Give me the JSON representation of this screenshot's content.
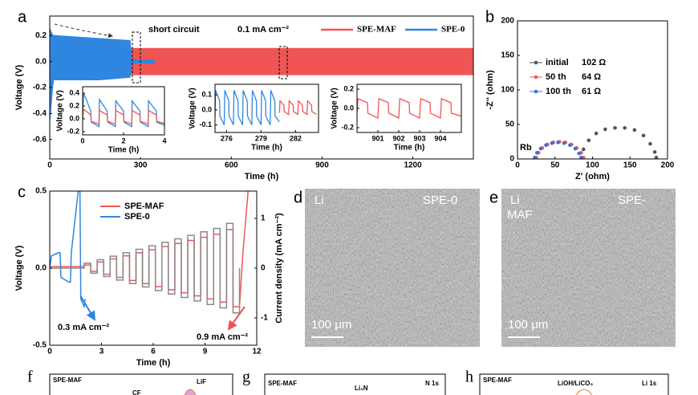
{
  "chart_data": [
    {
      "type": "band",
      "panel": "a",
      "xlabel": "Time (h)",
      "ylabel": "Voltage (V)",
      "xlim": [
        0,
        1400
      ],
      "ylim": [
        -0.75,
        0.35
      ],
      "xticks": [
        0,
        300,
        600,
        900,
        1200
      ],
      "yticks": [
        -0.6,
        -0.4,
        -0.2,
        {
          "value": 0,
          "label": "0.0"
        },
        0.2
      ],
      "legend": "top-right",
      "annotations": [
        "short circuit",
        "0.1 mA cm⁻²"
      ],
      "series": [
        {
          "name": "SPE-MAF",
          "color": "#f05454",
          "x": [
            0,
            1400
          ],
          "upper": [
            0.1,
            0.1
          ],
          "lower": [
            -0.1,
            -0.1
          ]
        },
        {
          "name": "SPE-0",
          "color": "#2f86e0",
          "x": [
            0,
            10,
            265,
            270,
            345
          ],
          "upper": [
            0.25,
            0.2,
            0.16,
            0.01,
            0.01
          ],
          "lower": [
            -0.45,
            -0.17,
            -0.12,
            -0.01,
            -0.01
          ]
        }
      ]
    },
    {
      "type": "line",
      "xlabel": "Time (h)",
      "ylabel": "Voltage (V)",
      "xlim": [
        0,
        4
      ],
      "ylim": [
        -0.25,
        0.5
      ],
      "xticks": [
        0,
        2,
        4
      ],
      "yticks": [
        -0.2,
        {
          "value": 0,
          "label": "0.0"
        },
        0.2,
        0.4
      ],
      "series": [
        {
          "color": "#2f86e0",
          "x": [
            0,
            0.05,
            0.4,
            0.42,
            0.8,
            0.82,
            1.2,
            1.22,
            1.6,
            1.62,
            2.0,
            2.02,
            2.4,
            2.42,
            2.8,
            2.82,
            3.2,
            3.22,
            3.6,
            3.62,
            4.0
          ],
          "values": [
            0.1,
            0.4,
            0.12,
            -0.05,
            -0.12,
            0.3,
            0.12,
            -0.05,
            -0.12,
            0.28,
            0.12,
            -0.05,
            -0.12,
            0.28,
            0.12,
            -0.05,
            -0.12,
            0.28,
            0.12,
            -0.05,
            -0.1
          ]
        },
        {
          "color": "#f05454",
          "x": [
            0,
            0.05,
            0.4,
            0.42,
            0.8,
            0.82,
            1.2,
            1.22,
            1.6,
            1.62,
            2.0,
            2.02,
            2.4,
            2.42,
            2.8,
            2.82,
            3.2,
            3.22,
            3.6,
            3.62,
            4.0
          ],
          "values": [
            0.0,
            0.15,
            0.06,
            -0.04,
            -0.08,
            0.13,
            0.06,
            -0.04,
            -0.08,
            0.13,
            0.06,
            -0.04,
            -0.08,
            0.13,
            0.06,
            -0.04,
            -0.08,
            0.13,
            0.06,
            -0.04,
            -0.07
          ]
        }
      ]
    },
    {
      "type": "line",
      "xlabel": "Time (h)",
      "ylabel": "Voltage (V)",
      "xlim": [
        275,
        284
      ],
      "ylim": [
        -0.15,
        0.17
      ],
      "xticks": [
        276,
        279,
        282
      ],
      "yticks": [
        -0.1,
        {
          "value": 0,
          "label": "0.0"
        },
        0.1
      ],
      "series": [
        {
          "color": "#2f86e0",
          "x": [
            275,
            275.05,
            275.4,
            275.42,
            275.8,
            275.85,
            276.2,
            276.22,
            276.6,
            276.65,
            277.0,
            277.02,
            277.4,
            277.45,
            277.8,
            277.82,
            278.2,
            278.25,
            278.6,
            278.62,
            279.0,
            279.05,
            279.4,
            279.42,
            279.8,
            279.85,
            280.2,
            280.22,
            280.6
          ],
          "values": [
            -0.05,
            0.13,
            0.06,
            -0.04,
            -0.1,
            0.13,
            0.06,
            -0.04,
            -0.1,
            0.13,
            0.06,
            -0.04,
            -0.1,
            0.13,
            0.06,
            -0.04,
            -0.1,
            0.13,
            0.06,
            -0.04,
            -0.1,
            0.13,
            0.06,
            -0.04,
            -0.1,
            0.13,
            0.06,
            -0.04,
            -0.08
          ]
        },
        {
          "color": "#f05454",
          "x": [
            280.6,
            280.65,
            281.0,
            281.02,
            281.4,
            281.45,
            281.8,
            281.82,
            282.2,
            282.25,
            282.6,
            282.62,
            283.0,
            283.05,
            283.4,
            283.42,
            283.8
          ],
          "values": [
            -0.02,
            0.06,
            0.03,
            -0.01,
            -0.03,
            0.06,
            0.03,
            -0.01,
            -0.03,
            0.06,
            0.03,
            -0.01,
            -0.03,
            0.06,
            0.03,
            -0.01,
            -0.03
          ]
        }
      ]
    },
    {
      "type": "line",
      "xlabel": "Time (h)",
      "ylabel": "Voltage (V)",
      "xlim": [
        900,
        905
      ],
      "ylim": [
        -0.25,
        0.25
      ],
      "xticks": [
        901,
        902,
        903,
        904
      ],
      "yticks": [
        -0.2,
        {
          "value": 0,
          "label": "0.0"
        },
        0.2
      ],
      "series": [
        {
          "color": "#f05454",
          "x": [
            900,
            900.05,
            900.5,
            900.52,
            901,
            901.05,
            901.5,
            901.52,
            902,
            902.05,
            902.5,
            902.52,
            903,
            903.05,
            903.5,
            903.52,
            904,
            904.05,
            904.5,
            904.52,
            905
          ],
          "values": [
            -0.05,
            0.1,
            0.06,
            -0.05,
            -0.1,
            0.1,
            0.06,
            -0.05,
            -0.1,
            0.1,
            0.06,
            -0.05,
            -0.1,
            0.1,
            0.06,
            -0.05,
            -0.1,
            0.1,
            0.06,
            -0.05,
            -0.08
          ]
        }
      ]
    },
    {
      "type": "scatter",
      "panel": "b",
      "xlabel": "Z' (ohm)",
      "ylabel": "-Z'' (ohm)",
      "xlim": [
        0,
        200
      ],
      "ylim": [
        0,
        200
      ],
      "xticks": [
        0,
        50,
        100,
        150,
        200
      ],
      "yticks": [
        0,
        50,
        100,
        150,
        200
      ],
      "legend": "middle-left",
      "annotations": [
        "Rb"
      ],
      "series": [
        {
          "name": "initial",
          "annotation": "102 Ω",
          "color": "#555555",
          "x": [
            85,
            88,
            95,
            105,
            117,
            130,
            143,
            156,
            168,
            177,
            183,
            185
          ],
          "values": [
            2,
            14,
            27,
            37,
            43,
            45,
            45,
            42,
            34,
            22,
            10,
            2
          ]
        },
        {
          "name": "50 th",
          "annotation": "64 Ω",
          "color": "#ee5a5a",
          "x": [
            25,
            28,
            33,
            40,
            48,
            56,
            64,
            72,
            79,
            85,
            88
          ],
          "values": [
            2,
            9,
            16,
            21,
            24,
            25,
            24,
            21,
            16,
            9,
            2
          ]
        },
        {
          "name": "100 th",
          "annotation": "61 Ω",
          "color": "#3b6fd4",
          "x": [
            23,
            26,
            31,
            38,
            46,
            54,
            62,
            70,
            77,
            82,
            85
          ],
          "values": [
            2,
            9,
            15,
            20,
            23,
            24,
            23,
            20,
            15,
            8,
            2
          ]
        }
      ]
    },
    {
      "type": "line",
      "panel": "c",
      "xlabel": "Time (h)",
      "ylabel": "Voltage (V)",
      "y2label": "Current density (mA cm⁻²)",
      "xlim": [
        0,
        12
      ],
      "ylim": [
        -0.5,
        0.5
      ],
      "xticks": [
        0,
        3,
        6,
        9,
        12
      ],
      "yticks": [
        -0.5,
        {
          "value": 0,
          "label": "0.0"
        },
        0.5
      ],
      "y2lim": [
        -1.55,
        1.55
      ],
      "y2ticks": [
        -1,
        0,
        1
      ],
      "legend": "top-left",
      "annotations": [
        "0.3 mA cm⁻²",
        "0.9 mA cm⁻²"
      ],
      "series": [
        {
          "name": "SPE-MAF",
          "color": "#f05454",
          "x": [
            0,
            2,
            2,
            2.375,
            2.375,
            2.75,
            2.75,
            3.125,
            3.125,
            3.5,
            3.5,
            3.875,
            3.875,
            4.25,
            4.25,
            4.625,
            4.625,
            5,
            5,
            5.375,
            5.375,
            5.75,
            5.75,
            6.125,
            6.125,
            6.5,
            6.5,
            6.875,
            6.875,
            7.25,
            7.25,
            7.625,
            7.625,
            8,
            8,
            8.375,
            8.375,
            8.75,
            8.75,
            9.125,
            9.125,
            9.5,
            9.5,
            9.875,
            9.875,
            10.25,
            10.25,
            10.625,
            10.625,
            11,
            11.2,
            11.5
          ],
          "values": [
            0.01,
            0.01,
            0.02,
            0.02,
            -0.02,
            -0.02,
            0.04,
            0.04,
            -0.04,
            -0.04,
            0.06,
            0.06,
            -0.06,
            -0.06,
            0.08,
            0.08,
            -0.08,
            -0.08,
            0.1,
            0.1,
            -0.1,
            -0.1,
            0.12,
            0.12,
            -0.12,
            -0.12,
            0.14,
            0.14,
            -0.14,
            -0.14,
            0.16,
            0.16,
            -0.16,
            -0.16,
            0.18,
            0.18,
            -0.18,
            -0.18,
            0.2,
            0.2,
            -0.2,
            -0.2,
            0.22,
            0.22,
            -0.22,
            -0.22,
            0.25,
            0.25,
            -0.25,
            -0.25,
            0.1,
            0.5
          ]
        },
        {
          "name": "SPE-0",
          "color": "#2f86e0",
          "x": [
            0,
            0.1,
            0.5,
            0.6,
            0.65,
            1.1,
            1.2,
            1.25,
            1.6,
            1.65,
            1.75,
            1.8,
            2.0,
            2.05
          ],
          "values": [
            0,
            0.08,
            0.1,
            0.1,
            -0.06,
            -0.09,
            -0.09,
            0.1,
            0.45,
            0.5,
            0.5,
            -0.2,
            -0.25,
            -0.2
          ]
        },
        {
          "color": "#8a8a8a",
          "axis": "y2",
          "x": [
            0,
            2,
            2,
            2.375,
            2.375,
            2.75,
            2.75,
            3.125,
            3.125,
            3.5,
            3.5,
            3.875,
            3.875,
            4.25,
            4.25,
            4.625,
            4.625,
            5,
            5,
            5.375,
            5.375,
            5.75,
            5.75,
            6.125,
            6.125,
            6.5,
            6.5,
            6.875,
            6.875,
            7.25,
            7.25,
            7.625,
            7.625,
            8,
            8,
            8.375,
            8.375,
            8.75,
            8.75,
            9.125,
            9.125,
            9.5,
            9.5,
            9.875,
            9.875,
            10.25,
            10.25,
            10.625,
            10.625,
            11,
            11
          ],
          "values": [
            0,
            0,
            0.1,
            0.1,
            -0.1,
            -0.1,
            0.17,
            0.17,
            -0.17,
            -0.17,
            0.24,
            0.24,
            -0.24,
            -0.24,
            0.31,
            0.31,
            -0.31,
            -0.31,
            0.38,
            0.38,
            -0.38,
            -0.38,
            0.45,
            0.45,
            -0.45,
            -0.45,
            0.52,
            0.52,
            -0.52,
            -0.52,
            0.59,
            0.59,
            -0.59,
            -0.59,
            0.66,
            0.66,
            -0.66,
            -0.66,
            0.73,
            0.73,
            -0.73,
            -0.73,
            0.8,
            0.8,
            -0.8,
            -0.8,
            0.9,
            0.9,
            -0.9,
            -0.9,
            0
          ]
        }
      ]
    }
  ],
  "images": [
    {
      "panel": "d",
      "label": "Li",
      "sample": "SPE-0",
      "scale": "100 μm"
    },
    {
      "panel": "e",
      "label": "Li",
      "sample": "SPE-",
      "sample2": "MAF",
      "scale": "100 μm"
    }
  ],
  "xps": [
    {
      "panel": "f",
      "sample": "SPE-MAF",
      "peaks": [
        "CF",
        "LiF"
      ]
    },
    {
      "panel": "g",
      "sample": "SPE-MAF",
      "peaks": [
        "Li₃N"
      ],
      "region": "N 1s"
    },
    {
      "panel": "h",
      "sample": "SPE-MAF",
      "peaks": [
        "LiOH/LiCO₃"
      ],
      "region": "Li 1s"
    }
  ]
}
